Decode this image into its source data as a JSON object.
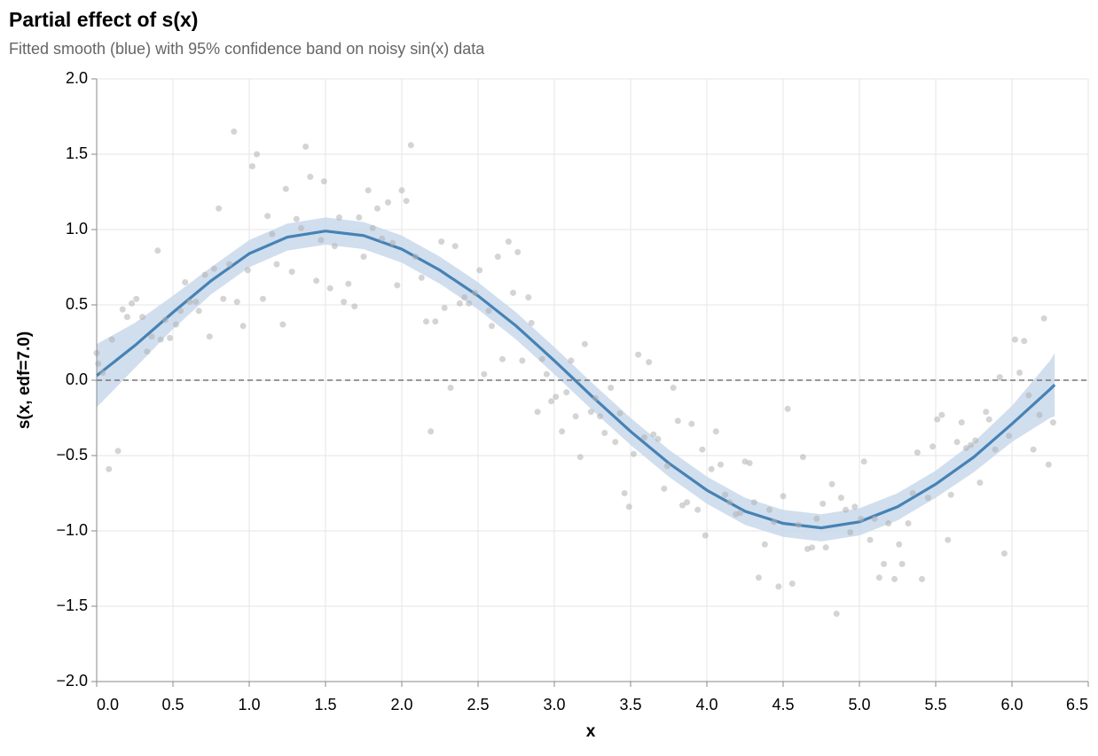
{
  "chart_data": {
    "type": "layered",
    "title": "Partial effect of s(x)",
    "subtitle": "Fitted smooth (blue) with 95% confidence band on noisy sin(x) data",
    "x_label": "x",
    "y_label": "s(x, edf=7.0)",
    "xlim": [
      0,
      6.5
    ],
    "ylim": [
      -2,
      2
    ],
    "xticks": [
      {
        "value": 0,
        "label": "0.0"
      },
      {
        "value": 0.5,
        "label": "0.5"
      },
      {
        "value": 1,
        "label": "1.0"
      },
      {
        "value": 1.5,
        "label": "1.5"
      },
      {
        "value": 2,
        "label": "2.0"
      },
      {
        "value": 2.5,
        "label": "2.5"
      },
      {
        "value": 3,
        "label": "3.0"
      },
      {
        "value": 3.5,
        "label": "3.5"
      },
      {
        "value": 4,
        "label": "4.0"
      },
      {
        "value": 4.5,
        "label": "4.5"
      },
      {
        "value": 5,
        "label": "5.0"
      },
      {
        "value": 5.5,
        "label": "5.5"
      },
      {
        "value": 6,
        "label": "6.0"
      },
      {
        "value": 6.5,
        "label": "6.5"
      }
    ],
    "yticks": [
      {
        "value": 2,
        "label": "2.0"
      },
      {
        "value": 1.5,
        "label": "1.5"
      },
      {
        "value": 1,
        "label": "1.0"
      },
      {
        "value": 0.5,
        "label": "0.5"
      },
      {
        "value": 0,
        "label": "0.0"
      },
      {
        "value": -0.5,
        "label": "−0.5"
      },
      {
        "value": -1,
        "label": "−1.0"
      },
      {
        "value": -1.5,
        "label": "−1.5"
      },
      {
        "value": -2,
        "label": "−2.0"
      }
    ],
    "grid": true,
    "reference_y": 0,
    "series": [
      {
        "type": "scatter",
        "color": "#b0b0b0",
        "x": [
          0.0,
          0.01,
          0.04,
          0.08,
          0.1,
          0.14,
          0.17,
          0.2,
          0.23,
          0.26,
          0.3,
          0.33,
          0.36,
          0.4,
          0.42,
          0.45,
          0.48,
          0.52,
          0.55,
          0.58,
          0.61,
          0.65,
          0.67,
          0.71,
          0.74,
          0.77,
          0.8,
          0.83,
          0.87,
          0.9,
          0.92,
          0.96,
          0.99,
          1.02,
          1.05,
          1.09,
          1.12,
          1.15,
          1.18,
          1.22,
          1.24,
          1.28,
          1.31,
          1.34,
          1.37,
          1.4,
          1.44,
          1.47,
          1.49,
          1.53,
          1.56,
          1.59,
          1.62,
          1.65,
          1.69,
          1.72,
          1.75,
          1.78,
          1.81,
          1.84,
          1.87,
          1.91,
          1.94,
          1.97,
          2.0,
          2.03,
          2.06,
          2.09,
          2.13,
          2.16,
          2.19,
          2.22,
          2.26,
          2.28,
          2.32,
          2.35,
          2.38,
          2.41,
          2.44,
          2.48,
          2.51,
          2.54,
          2.57,
          2.59,
          2.63,
          2.66,
          2.7,
          2.73,
          2.76,
          2.79,
          2.83,
          2.85,
          2.89,
          2.92,
          2.95,
          2.98,
          3.01,
          3.05,
          3.08,
          3.11,
          3.14,
          3.17,
          3.2,
          3.24,
          3.27,
          3.3,
          3.33,
          3.37,
          3.4,
          3.43,
          3.46,
          3.49,
          3.52,
          3.55,
          3.59,
          3.62,
          3.65,
          3.68,
          3.72,
          3.74,
          3.78,
          3.81,
          3.84,
          3.87,
          3.9,
          3.94,
          3.97,
          3.99,
          4.03,
          4.06,
          4.09,
          4.12,
          4.15,
          4.19,
          4.22,
          4.25,
          4.28,
          4.31,
          4.34,
          4.38,
          4.41,
          4.44,
          4.47,
          4.5,
          4.53,
          4.56,
          4.6,
          4.63,
          4.66,
          4.69,
          4.72,
          4.76,
          4.78,
          4.82,
          4.85,
          4.88,
          4.91,
          4.94,
          4.97,
          5.01,
          5.03,
          5.07,
          5.1,
          5.13,
          5.16,
          5.19,
          5.23,
          5.26,
          5.28,
          5.32,
          5.35,
          5.38,
          5.41,
          5.45,
          5.48,
          5.51,
          5.54,
          5.58,
          5.6,
          5.64,
          5.67,
          5.7,
          5.73,
          5.76,
          5.79,
          5.83,
          5.85,
          5.89,
          5.92,
          5.95,
          5.98,
          6.02,
          6.05,
          6.08,
          6.11,
          6.14,
          6.18,
          6.21,
          6.24,
          6.27
        ],
        "values": [
          0.18,
          0.11,
          0.05,
          -0.59,
          0.27,
          -0.47,
          0.47,
          0.42,
          0.51,
          0.54,
          0.42,
          0.19,
          0.29,
          0.86,
          0.27,
          0.4,
          0.28,
          0.37,
          0.46,
          0.65,
          0.52,
          0.52,
          0.46,
          0.7,
          0.29,
          0.74,
          1.14,
          0.54,
          0.77,
          1.65,
          0.52,
          0.36,
          0.73,
          1.42,
          1.5,
          0.54,
          1.09,
          0.97,
          0.77,
          0.37,
          1.27,
          0.72,
          1.07,
          1.01,
          1.55,
          1.35,
          0.66,
          0.93,
          1.32,
          0.61,
          0.89,
          1.08,
          0.52,
          0.64,
          0.49,
          1.08,
          0.82,
          1.26,
          1.01,
          1.14,
          0.94,
          1.18,
          0.91,
          0.63,
          1.26,
          1.19,
          1.56,
          0.82,
          0.68,
          0.39,
          -0.34,
          0.39,
          0.92,
          0.48,
          -0.05,
          0.89,
          0.51,
          0.55,
          0.51,
          0.58,
          0.73,
          0.04,
          0.46,
          0.36,
          0.82,
          0.14,
          0.92,
          0.58,
          0.85,
          0.13,
          0.55,
          0.38,
          -0.21,
          0.14,
          0.04,
          -0.14,
          -0.11,
          -0.34,
          -0.08,
          0.13,
          -0.24,
          -0.51,
          0.24,
          -0.21,
          -0.12,
          -0.24,
          -0.35,
          -0.05,
          -0.41,
          -0.22,
          -0.75,
          -0.84,
          -0.49,
          0.17,
          -0.38,
          0.12,
          -0.36,
          -0.39,
          -0.72,
          -0.57,
          -0.05,
          -0.27,
          -0.83,
          -0.81,
          -0.29,
          -0.86,
          -0.46,
          -1.03,
          -0.59,
          -0.34,
          -0.56,
          -0.76,
          -0.81,
          -0.89,
          -0.88,
          -0.54,
          -0.55,
          -0.81,
          -1.31,
          -1.09,
          -0.86,
          -0.94,
          -1.37,
          -0.77,
          -0.19,
          -1.35,
          -0.96,
          -0.51,
          -1.12,
          -1.11,
          -0.92,
          -0.82,
          -1.11,
          -0.69,
          -1.55,
          -0.78,
          -0.86,
          -1.01,
          -0.84,
          -0.92,
          -0.54,
          -1.06,
          -0.92,
          -1.31,
          -1.22,
          -0.95,
          -1.32,
          -1.09,
          -1.22,
          -0.95,
          -0.75,
          -0.48,
          -1.32,
          -0.78,
          -0.44,
          -0.26,
          -0.23,
          -1.06,
          -0.76,
          -0.41,
          -0.28,
          -0.45,
          -0.43,
          -0.4,
          -0.68,
          -0.21,
          -0.26,
          -0.46,
          0.02,
          -1.15,
          -0.37,
          0.27,
          0.05,
          0.26,
          -0.1,
          -0.46,
          -0.23,
          0.41,
          -0.56,
          -0.28
        ]
      },
      {
        "type": "line",
        "color": "#4682b4",
        "band_color": "#c4d6ea",
        "x": [
          0,
          0.25,
          0.5,
          0.75,
          1,
          1.25,
          1.5,
          1.75,
          2,
          2.25,
          2.5,
          2.75,
          3,
          3.25,
          3.5,
          3.75,
          4,
          4.25,
          4.5,
          4.75,
          5,
          5.25,
          5.5,
          5.75,
          6,
          6.25,
          6.28
        ],
        "values": [
          0.03,
          0.23,
          0.45,
          0.66,
          0.84,
          0.95,
          0.99,
          0.96,
          0.87,
          0.73,
          0.56,
          0.36,
          0.13,
          -0.11,
          -0.34,
          -0.55,
          -0.73,
          -0.87,
          -0.95,
          -0.98,
          -0.94,
          -0.84,
          -0.69,
          -0.51,
          -0.29,
          -0.06,
          -0.03
        ],
        "lower": [
          -0.18,
          0.08,
          0.34,
          0.57,
          0.75,
          0.86,
          0.9,
          0.87,
          0.78,
          0.64,
          0.47,
          0.27,
          0.04,
          -0.2,
          -0.43,
          -0.64,
          -0.82,
          -0.96,
          -1.04,
          -1.07,
          -1.03,
          -0.93,
          -0.78,
          -0.61,
          -0.41,
          -0.25,
          -0.24
        ],
        "upper": [
          0.24,
          0.38,
          0.56,
          0.75,
          0.93,
          1.04,
          1.08,
          1.05,
          0.96,
          0.82,
          0.65,
          0.45,
          0.22,
          -0.02,
          -0.25,
          -0.46,
          -0.64,
          -0.78,
          -0.86,
          -0.89,
          -0.85,
          -0.75,
          -0.6,
          -0.41,
          -0.17,
          0.13,
          0.18
        ]
      }
    ]
  }
}
